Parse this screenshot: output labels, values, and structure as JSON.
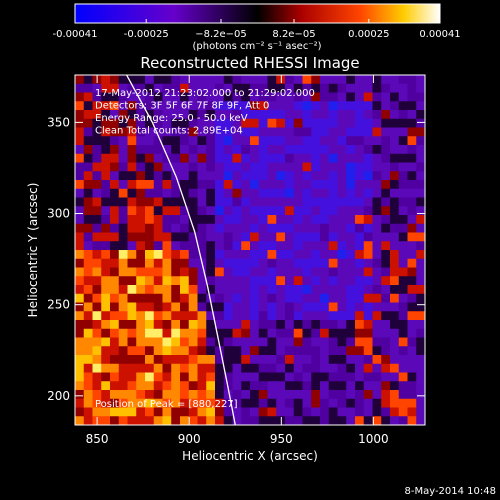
{
  "chart_data": {
    "type": "heatmap",
    "title": "Reconstructed RHESSI Image",
    "xlabel": "Heliocentric X (arcsec)",
    "ylabel": "Heliocentric Y (arcsec)",
    "xlim": [
      838,
      1028
    ],
    "ylim": [
      184,
      376
    ],
    "x_ticks": [
      850,
      900,
      950,
      1000
    ],
    "y_ticks": [
      200,
      250,
      300,
      350
    ],
    "colorbar": {
      "min": -0.00041,
      "max": 0.00041,
      "tick_values": [
        -0.00041,
        -0.00025,
        -8.2e-05,
        8.2e-05,
        0.00025,
        0.00041
      ],
      "tick_labels": [
        "-0.00041",
        "-0.00025",
        "−8.2e−05",
        "8.2e−05",
        "0.00025",
        "0.00041"
      ],
      "unit_label": "(photons cm⁻² s⁻¹ asec⁻²)"
    },
    "annotations": [
      "17-May-2012 21:23:02.000 to 21:29:02.000",
      "Detectors: 3F 5F 6F 7F 8F 9F, Att 0",
      "Energy Range: 25.0 - 50.0 keV",
      "Clean    Total counts: 2.89E+04"
    ],
    "peak_label": "Position of Peak = [880,227]",
    "peak": [
      880,
      227
    ],
    "limb_curve": [
      [
        866,
        376
      ],
      [
        880,
        350
      ],
      [
        893,
        320
      ],
      [
        903,
        290
      ],
      [
        910,
        260
      ],
      [
        916,
        230
      ],
      [
        921,
        205
      ],
      [
        925,
        184
      ]
    ]
  },
  "footer": {
    "date": "8-May-2014 10:48"
  },
  "colors": {
    "background": "#000000",
    "text": "#ffffff",
    "limb": "#ffffff"
  }
}
